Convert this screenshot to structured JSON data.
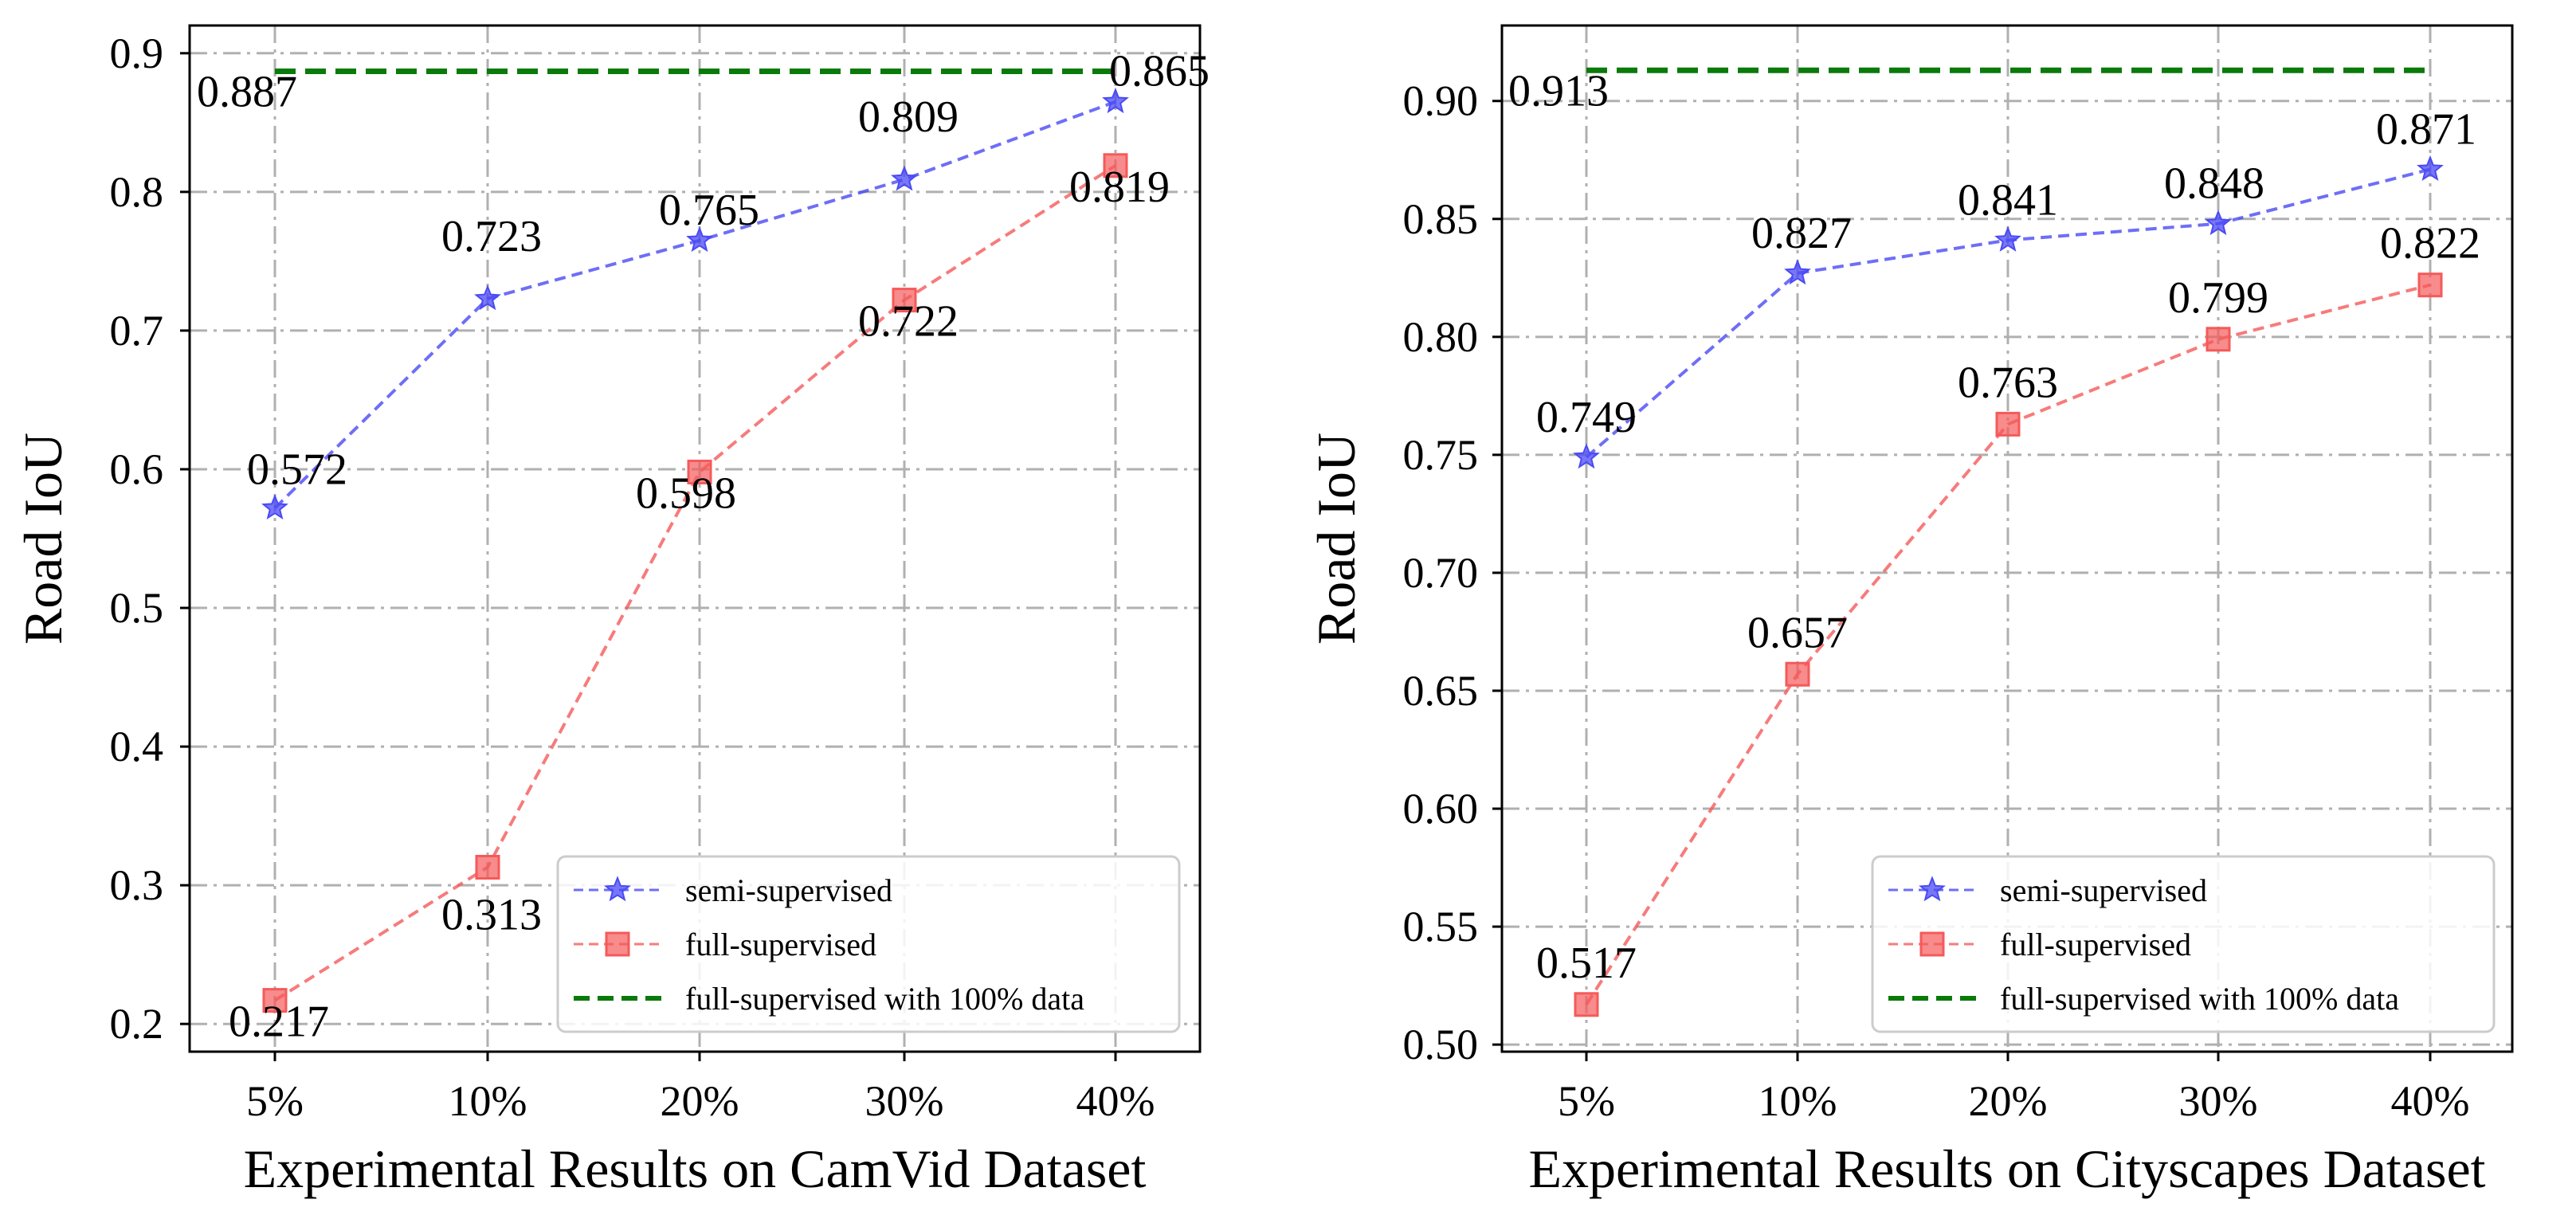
{
  "chart_data": [
    {
      "type": "line",
      "categories": [
        "5%",
        "10%",
        "20%",
        "30%",
        "40%"
      ],
      "ylim": [
        0.18,
        0.92
      ],
      "yticks": [
        "0.2",
        "0.3",
        "0.4",
        "0.5",
        "0.6",
        "0.7",
        "0.8",
        "0.9"
      ],
      "xlabel": "Experimental Results on CamVid Dataset",
      "ylabel": "Road IoU",
      "grid": true,
      "legend_position": "bottom-right",
      "series": [
        {
          "name": "semi-supervised",
          "marker": "star",
          "color": "#4a4af5",
          "values": [
            0.572,
            0.723,
            0.765,
            0.809,
            0.865
          ],
          "labels": [
            "0.572",
            "0.723",
            "0.765",
            "0.809",
            "0.865"
          ]
        },
        {
          "name": "full-supervised",
          "marker": "square",
          "color": "#f55a5a",
          "values": [
            0.217,
            0.313,
            0.598,
            0.722,
            0.819
          ],
          "labels": [
            "0.217",
            "0.313",
            "0.598",
            "0.722",
            "0.819"
          ]
        }
      ],
      "baseline": {
        "name": "full-supervised with 100% data",
        "value": 0.887,
        "label": "0.887",
        "color": "#0a7a0a"
      }
    },
    {
      "type": "line",
      "categories": [
        "5%",
        "10%",
        "20%",
        "30%",
        "40%"
      ],
      "ylim": [
        0.497,
        0.932
      ],
      "yticks": [
        "0.50",
        "0.55",
        "0.60",
        "0.65",
        "0.70",
        "0.75",
        "0.80",
        "0.85",
        "0.90"
      ],
      "xlabel": "Experimental Results on Cityscapes Dataset",
      "ylabel": "Road IoU",
      "grid": true,
      "legend_position": "bottom-right",
      "series": [
        {
          "name": "semi-supervised",
          "marker": "star",
          "color": "#4a4af5",
          "values": [
            0.749,
            0.827,
            0.841,
            0.848,
            0.871
          ],
          "labels": [
            "0.749",
            "0.827",
            "0.841",
            "0.848",
            "0.871"
          ]
        },
        {
          "name": "full-supervised",
          "marker": "square",
          "color": "#f55a5a",
          "values": [
            0.517,
            0.657,
            0.763,
            0.799,
            0.822
          ],
          "labels": [
            "0.517",
            "0.657",
            "0.763",
            "0.799",
            "0.822"
          ]
        }
      ],
      "baseline": {
        "name": "full-supervised with 100% data",
        "value": 0.913,
        "label": "0.913",
        "color": "#0a7a0a"
      }
    }
  ]
}
